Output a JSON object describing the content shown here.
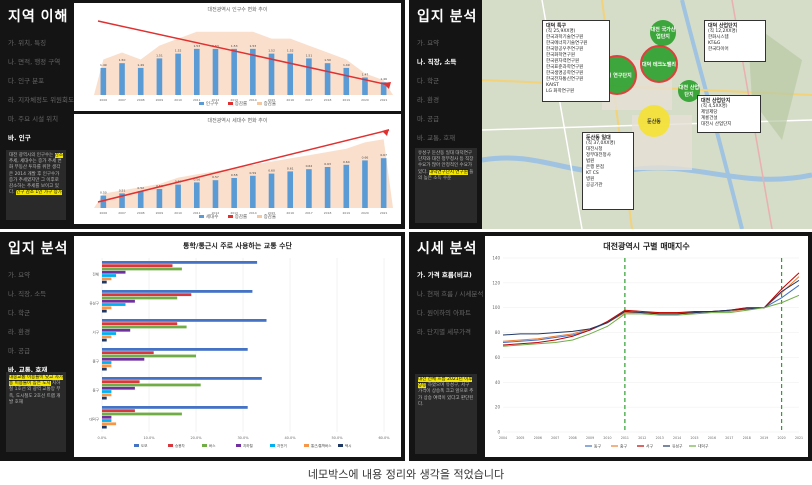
{
  "caption": "네모박스에 내용 정리와 생각을 적었습니다",
  "slide1": {
    "title": "지역 이해",
    "menu": [
      "가. 위치, 특징",
      "나. 면적, 행정 구역",
      "다. 인구 분포",
      "라. 지자체정도 위원회도",
      "마. 주요 시설 위치",
      "바. 인구"
    ],
    "active_index": 5,
    "note_plain": "대전 광역시의 인구수는",
    "note_highlight": "감소",
    "note_rest": "추세, 세대수는 증가 추세 변화 부동산 투자를 위한 생각은 2014 개발 후 인구수가 증가 추세였지만 그 이후로 감소하는 추세를 보이고 있다.",
    "note_hl2": "인구 감소 1인 가구 증가",
    "chart_top": {
      "title": "대전광역시 인구수 변화 추이",
      "legend": [
        "인구수",
        "증감률",
        "증감율"
      ],
      "colors": {
        "bar": "#5b9bd5",
        "area": "#f4c7a1",
        "line": "#e03030",
        "point": "#2e75b6"
      },
      "categories": [
        "2006",
        "2007",
        "2008",
        "2009",
        "2010",
        "2011",
        "2012",
        "2013",
        "2014",
        "2015",
        "2016",
        "2017",
        "2018",
        "2019",
        "2020",
        "2021"
      ],
      "values": [
        1.49,
        1.5,
        1.49,
        1.51,
        1.52,
        1.53,
        1.53,
        1.53,
        1.53,
        1.52,
        1.52,
        1.51,
        1.5,
        1.49,
        1.47,
        1.46
      ]
    },
    "chart_bottom": {
      "title": "대전광역시 세대수 변화 추이",
      "legend": [
        "세대수",
        "증감률",
        "증감율"
      ],
      "categories": [
        "2006",
        "2007",
        "2008",
        "2009",
        "2010",
        "2011",
        "2012",
        "2013",
        "2014",
        "2015",
        "2016",
        "2017",
        "2018",
        "2019",
        "2020",
        "2021"
      ],
      "values": [
        0.5,
        0.51,
        0.52,
        0.53,
        0.55,
        0.56,
        0.57,
        0.58,
        0.59,
        0.6,
        0.61,
        0.62,
        0.63,
        0.64,
        0.66,
        0.67
      ]
    }
  },
  "slide2": {
    "title": "입지 분석",
    "menu": [
      "가. 요약",
      "나. 직장, 소득",
      "다. 학군",
      "라. 환경",
      "마. 공급",
      "바. 교통, 호재"
    ],
    "active_index": 1,
    "note_plain": "유성구 둔산동 일대 대덕연구단지와 대전 정부청사 등 직장 수요가 많아 안정적인 수요가 있다.",
    "note_highlight": "대덕연구단지 연구원",
    "note_rest": "들의 높은 소득 수준",
    "boxes": {
      "research": {
        "title": "대덕 특구",
        "sub": "(직 25,9XX명)",
        "items": [
          "한국과학기술연구원",
          "한국에너지기술연구원",
          "한국항공우주연구원",
          "한국화학연구원",
          "한국원자력연구원",
          "한국표준과학연구원",
          "한국생명공학연구원",
          "한국전자통신연구원",
          "KAIST",
          "LG 화학연구원"
        ]
      },
      "industry": {
        "title": "대덕 산업단지",
        "sub": "(직 12,2XX명)",
        "items": [
          "한화시스템",
          "KT&G",
          "한국타이어"
        ]
      },
      "daejeon": {
        "title": "대전 산업단지",
        "sub": "(직 4,5XX명)",
        "items": [
          "제일제당",
          "계룡건설",
          "대전시 산업단지"
        ]
      },
      "dunsan": {
        "title": "둔산동 일대",
        "sub": "(직 37,0XX명)",
        "items": [
          "대전시청",
          "정부대전청사",
          "법원",
          "은행 본점",
          "KT CS",
          "병원",
          "공공기관"
        ]
      }
    },
    "circles": [
      "대덕 연구단지",
      "대전 국가산업단지",
      "대덕 테크노밸리",
      "대전 산업단지",
      "둔산동"
    ]
  },
  "slide3": {
    "title": "입지 분석",
    "menu": [
      "가. 요약",
      "나. 직장, 소득",
      "다. 학군",
      "라. 환경",
      "마. 공급",
      "바. 교통, 호재"
    ],
    "active_index": 5,
    "note_highlight": "대중교통 이용률이 낮고 자가용 이용률이 높은 도시",
    "note_rest": "지하철 1호선 외 광역 교통망 부족, 도시철도 2호선 트램 개발 호재",
    "chart_data": {
      "type": "bar",
      "title": "통학/통근시 주로 사용하는 교통 수단",
      "categories": [
        "전체",
        "유성구",
        "서구",
        "중구",
        "동구",
        "대덕구"
      ],
      "series": [
        {
          "name": "도보",
          "color": "#4472c4",
          "values": [
            0.33,
            0.32,
            0.35,
            0.31,
            0.34,
            0.31
          ]
        },
        {
          "name": "승용차",
          "color": "#d9363e",
          "values": [
            0.15,
            0.19,
            0.16,
            0.11,
            0.08,
            0.07
          ]
        },
        {
          "name": "버스",
          "color": "#70ad47",
          "values": [
            0.17,
            0.16,
            0.18,
            0.2,
            0.21,
            0.17
          ]
        },
        {
          "name": "지하철",
          "color": "#7030a0",
          "values": [
            0.05,
            0.07,
            0.06,
            0.09,
            0.07,
            0.02
          ]
        },
        {
          "name": "자전거",
          "color": "#00b0f0",
          "values": [
            0.03,
            0.05,
            0.03,
            0.02,
            0.02,
            0.02
          ]
        },
        {
          "name": "통근/통학버스",
          "color": "#f79646",
          "values": [
            0.02,
            0.02,
            0.02,
            0.02,
            0.02,
            0.03
          ]
        },
        {
          "name": "택시",
          "color": "#1f3864",
          "values": [
            0.01,
            0.01,
            0.01,
            0.01,
            0.01,
            0.01
          ]
        }
      ],
      "xlim": [
        0,
        0.6
      ],
      "ticks": [
        "0.0%",
        "10.0%",
        "20.0%",
        "30.0%",
        "40.0%",
        "50.0%",
        "60.0%"
      ]
    }
  },
  "slide4": {
    "title": "시세 분석",
    "menu": [
      "가. 가격 흐름(비교)",
      "나. 현재 흐름 / 시세분석",
      "다. 원이하의 아파트",
      "라. 단지별 세부가격"
    ],
    "active_index": 0,
    "note_highlight": "대전 전체 흐름 2021년 이후 상승",
    "note_rest": "하였으며 유성구, 서구 가격이 상승폭 크고 앞으로 추가 상승 여력이 있다고 판단된다.",
    "chart_data": {
      "type": "line",
      "title": "대전광역시 구별 매매지수",
      "categories": [
        "2004",
        "2005",
        "2006",
        "2007",
        "2008",
        "2009",
        "2010",
        "2011",
        "2012",
        "2013",
        "2014",
        "2015",
        "2016",
        "2017",
        "2018",
        "2019",
        "2020",
        "2021"
      ],
      "ylim": [
        0,
        140
      ],
      "yticks": [
        0,
        20,
        40,
        60,
        80,
        100,
        120,
        140
      ],
      "markers": [
        "2011",
        "2020"
      ],
      "series": [
        {
          "name": "동구",
          "color": "#4472c4",
          "values": [
            72,
            73,
            74,
            76,
            78,
            82,
            88,
            97,
            96,
            95,
            95,
            96,
            97,
            98,
            100,
            100,
            108,
            118
          ]
        },
        {
          "name": "중구",
          "color": "#ed7d31",
          "values": [
            73,
            74,
            75,
            77,
            79,
            83,
            88,
            96,
            96,
            96,
            96,
            96,
            97,
            97,
            99,
            100,
            112,
            125
          ]
        },
        {
          "name": "서구",
          "color": "#c00000",
          "values": [
            70,
            71,
            72,
            74,
            77,
            82,
            89,
            98,
            97,
            96,
            96,
            97,
            97,
            98,
            100,
            100,
            115,
            128
          ]
        },
        {
          "name": "유성구",
          "color": "#1f3864",
          "values": [
            78,
            79,
            79,
            80,
            81,
            83,
            88,
            97,
            96,
            95,
            95,
            96,
            97,
            98,
            99,
            100,
            113,
            122
          ]
        },
        {
          "name": "대덕구",
          "color": "#70ad47",
          "values": [
            69,
            70,
            71,
            72,
            74,
            79,
            85,
            95,
            95,
            94,
            94,
            95,
            96,
            96,
            98,
            100,
            104,
            110
          ]
        }
      ]
    }
  }
}
